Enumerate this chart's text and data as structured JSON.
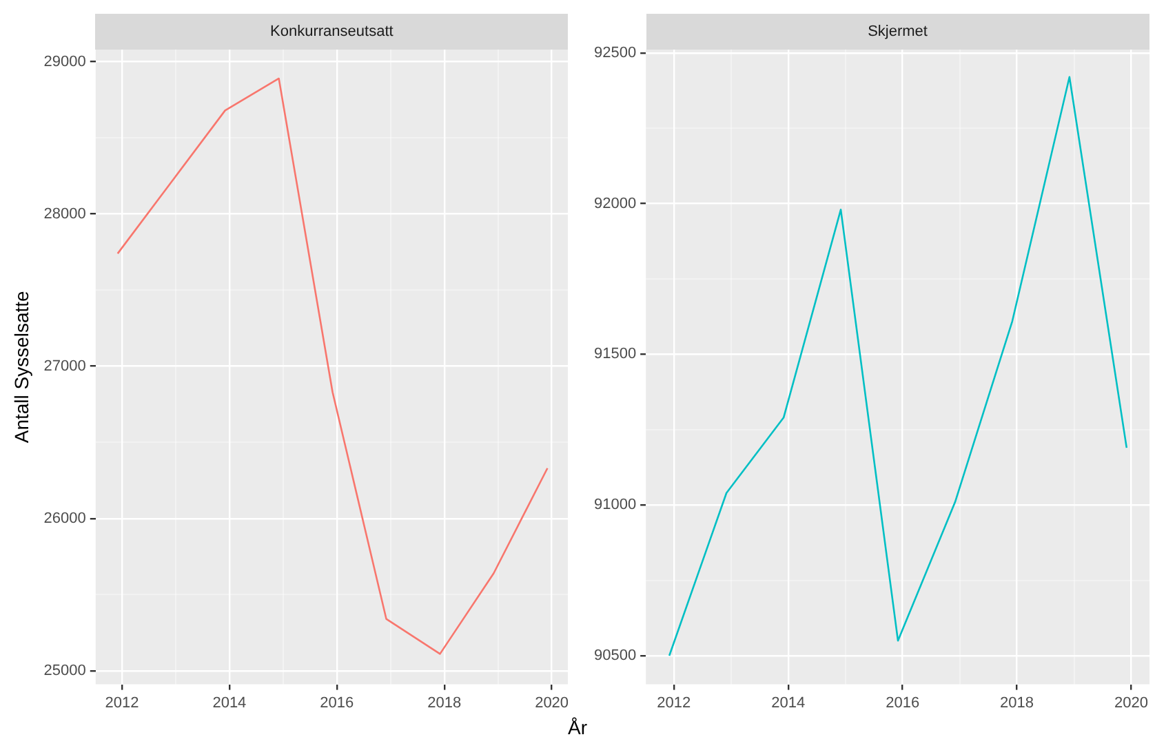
{
  "chart_data": [
    {
      "type": "line",
      "title": "Konkurranseutsatt",
      "xlabel": "År",
      "ylabel": "Antall Sysselsatte",
      "x": [
        2011.92,
        2012.92,
        2013.92,
        2014.92,
        2015.92,
        2016.92,
        2017.92,
        2018.92,
        2019.92
      ],
      "series": [
        {
          "color": "#f8766d",
          "values": [
            27740,
            28210,
            28680,
            28890,
            26830,
            25340,
            25110,
            25640,
            26330
          ]
        }
      ],
      "xlim": [
        2011.51,
        2020.3
      ],
      "xticks": [
        2012,
        {
          "value": 2013,
          "label": null
        },
        2014,
        {
          "value": 2015,
          "label": null
        },
        2016,
        {
          "value": 2017,
          "label": null
        },
        2018,
        {
          "value": 2019,
          "label": null
        },
        2020
      ],
      "ylim": [
        24910,
        29080
      ],
      "yticks": [
        25000,
        {
          "value": 25500,
          "label": null
        },
        26000,
        {
          "value": 26500,
          "label": null
        },
        27000,
        {
          "value": 27500,
          "label": null
        },
        28000,
        {
          "value": 28500,
          "label": null
        },
        29000
      ],
      "grid": true,
      "legend": false,
      "marker": "none"
    },
    {
      "type": "line",
      "title": "Skjermet",
      "x": [
        2011.92,
        2012.92,
        2013.92,
        2014.92,
        2015.92,
        2016.92,
        2017.92,
        2018.92,
        2019.92
      ],
      "series": [
        {
          "color": "#00bfc4",
          "values": [
            90500,
            91040,
            91290,
            91980,
            90550,
            91010,
            91610,
            92420,
            91190
          ]
        }
      ],
      "xlim": [
        2011.51,
        2020.32
      ],
      "xticks": [
        2012,
        {
          "value": 2013,
          "label": null
        },
        2014,
        {
          "value": 2015,
          "label": null
        },
        2016,
        {
          "value": 2017,
          "label": null
        },
        2018,
        {
          "value": 2019,
          "label": null
        },
        2020
      ],
      "ylim": [
        90405,
        92511
      ],
      "yticks": [
        90500,
        {
          "value": 90750,
          "label": null
        },
        91000,
        {
          "value": 91250,
          "label": null
        },
        91500,
        {
          "value": 91750,
          "label": null
        },
        92000,
        {
          "value": 92250,
          "label": null
        },
        92500
      ],
      "grid": true,
      "legend": false,
      "marker": "none"
    }
  ]
}
